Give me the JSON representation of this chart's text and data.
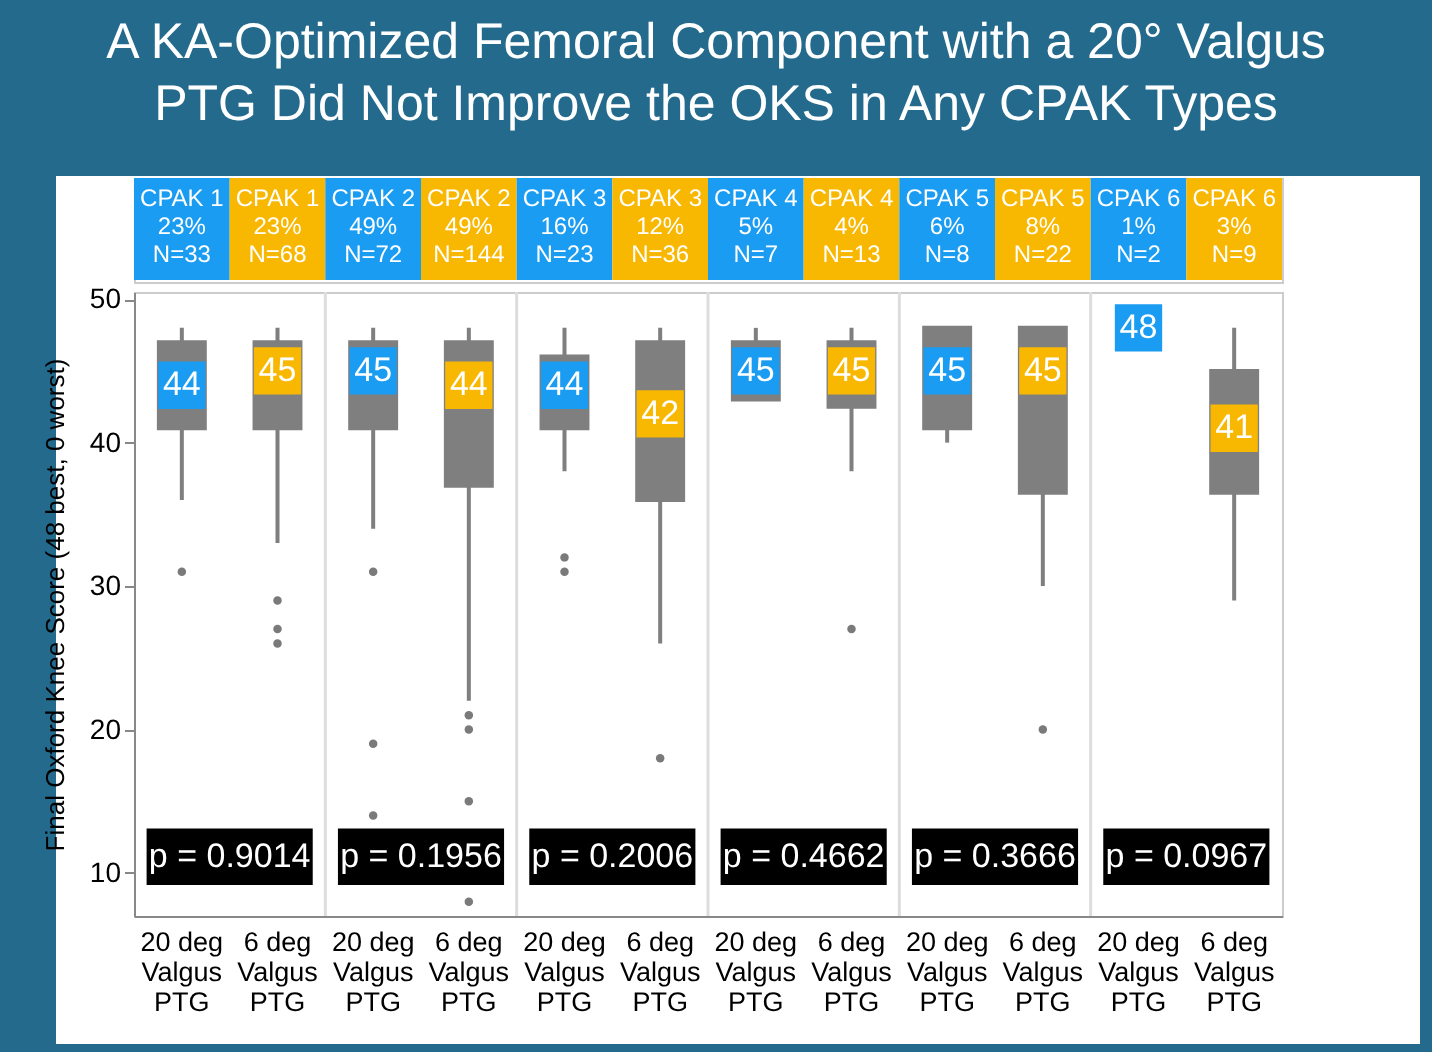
{
  "chart_data": {
    "type": "box",
    "title": "A KA-Optimized Femoral Component with a 20° Valgus PTG Did Not Improve the OKS in Any CPAK Types",
    "ylabel": "Final Oxford Knee Score (48 best, 0 worst)",
    "categories": [
      "20 deg Valgus PTG",
      "6 deg Valgus PTG",
      "20 deg Valgus PTG",
      "6 deg Valgus PTG",
      "20 deg Valgus PTG",
      "6 deg Valgus PTG",
      "20 deg Valgus PTG",
      "6 deg Valgus PTG",
      "20 deg Valgus PTG",
      "6 deg Valgus PTG",
      "20 deg Valgus PTG",
      "6 deg Valgus PTG"
    ],
    "colors": [
      "#7f7f7f",
      "#7f7f7f",
      "#7f7f7f",
      "#7f7f7f",
      "#7f7f7f",
      "#7f7f7f",
      "#7f7f7f",
      "#7f7f7f",
      "#7f7f7f",
      "#7f7f7f",
      "#7f7f7f",
      "#7f7f7f"
    ],
    "boxes": [
      {
        "low": 36,
        "q1": 41,
        "median": 44,
        "q3": 47,
        "high": 48,
        "outliers": [
          31
        ]
      },
      {
        "low": 33,
        "q1": 41,
        "median": 45,
        "q3": 47,
        "high": 48,
        "outliers": [
          29,
          27,
          26
        ]
      },
      {
        "low": 34,
        "q1": 41,
        "median": 45,
        "q3": 47,
        "high": 48,
        "outliers": [
          31,
          19,
          14
        ]
      },
      {
        "low": 22,
        "q1": 37,
        "median": 44,
        "q3": 47,
        "high": 48,
        "outliers": [
          21,
          20,
          15,
          8
        ]
      },
      {
        "low": 38,
        "q1": 41,
        "median": 44,
        "q3": 46,
        "high": 48,
        "outliers": [
          32,
          31
        ]
      },
      {
        "low": 26,
        "q1": 36,
        "median": 42,
        "q3": 47,
        "high": 48,
        "outliers": [
          18
        ]
      },
      {
        "low": 43,
        "q1": 43,
        "median": 45,
        "q3": 47,
        "high": 48
      },
      {
        "low": 38,
        "q1": 42.5,
        "median": 45,
        "q3": 47,
        "high": 48,
        "outliers": [
          27
        ]
      },
      {
        "low": 40,
        "q1": 41,
        "median": 45,
        "q3": 48,
        "high": 48
      },
      {
        "low": 30,
        "q1": 36.5,
        "median": 45,
        "q3": 48,
        "high": 48,
        "outliers": [
          20
        ]
      },
      {
        "low": 48,
        "q1": 48,
        "median": 48,
        "q3": 48,
        "high": 48
      },
      {
        "low": 29,
        "q1": 36.5,
        "median": 41,
        "q3": 45,
        "high": 48
      }
    ],
    "data_labels": true,
    "value_labels": [
      "44",
      "45",
      "45",
      "44",
      "44",
      "42",
      "45",
      "45",
      "45",
      "45",
      "48",
      "41"
    ],
    "ylim": [
      7,
      50.5
    ],
    "yticks": [
      10,
      20,
      30,
      40,
      50
    ],
    "grid": false,
    "annotations": [
      "CPAK 1 23% N=33",
      "CPAK 1 23% N=68",
      "CPAK 2 49% N=72",
      "CPAK 2 49% N=144",
      "CPAK 3 16% N=23",
      "CPAK 3 12% N=36",
      "CPAK 4 5% N=7",
      "CPAK 4 4% N=13",
      "CPAK 5 6% N=8",
      "CPAK 5 8% N=22",
      "CPAK 6 1% N=2",
      "CPAK 6 3% N=9",
      "p = 0.9014",
      "p = 0.1956",
      "p = 0.2006",
      "p = 0.4662",
      "p = 0.3666",
      "p = 0.0967"
    ]
  }
}
